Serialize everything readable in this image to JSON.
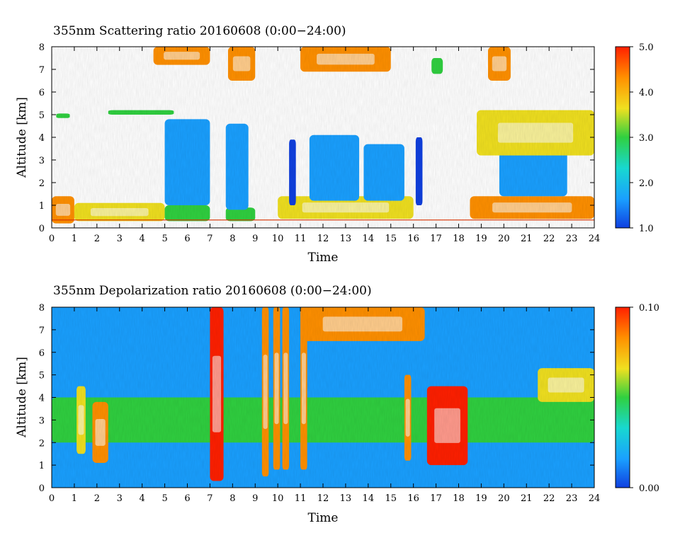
{
  "chart_data": [
    {
      "type": "heatmap",
      "title": "355nm Scattering ratio  20160608 (0:00−24:00)",
      "xlabel": "Time",
      "ylabel": "Altitude [km]",
      "xlim": [
        0,
        24
      ],
      "ylim": [
        0,
        8
      ],
      "x_ticks": [
        "0",
        "1",
        "2",
        "3",
        "4",
        "5",
        "6",
        "7",
        "8",
        "9",
        "10",
        "11",
        "12",
        "13",
        "14",
        "15",
        "16",
        "17",
        "18",
        "19",
        "20",
        "21",
        "22",
        "23",
        "24"
      ],
      "y_ticks": [
        "0",
        "1",
        "2",
        "3",
        "4",
        "5",
        "6",
        "7",
        "8"
      ],
      "colorbar": {
        "min": 1.0,
        "max": 5.0,
        "ticks": [
          "1.0",
          "2.0",
          "3.0",
          "4.0",
          "5.0"
        ]
      },
      "colormap": [
        "#1040e0",
        "#1aa0ff",
        "#18d8d0",
        "#30d040",
        "#f0e020",
        "#ff9000",
        "#ff2000"
      ],
      "ground_line_km": 0.35,
      "features": [
        {
          "kind": "boundary_layer",
          "x": [
            0,
            1
          ],
          "y": [
            0.2,
            1.4
          ],
          "value": 4.2
        },
        {
          "kind": "boundary_layer",
          "x": [
            1,
            5
          ],
          "y": [
            0.3,
            1.1
          ],
          "value": 3.6
        },
        {
          "kind": "boundary_layer",
          "x": [
            5,
            7
          ],
          "y": [
            0.3,
            1.0
          ],
          "value": 3.2
        },
        {
          "kind": "boundary_layer",
          "x": [
            7.7,
            9
          ],
          "y": [
            0.3,
            0.9
          ],
          "value": 2.8
        },
        {
          "kind": "boundary_layer",
          "x": [
            10,
            16
          ],
          "y": [
            0.4,
            1.4
          ],
          "value": 3.4
        },
        {
          "kind": "boundary_layer",
          "x": [
            18.5,
            24
          ],
          "y": [
            0.4,
            1.4
          ],
          "value": 4.3
        },
        {
          "kind": "aerosol_column",
          "x": [
            5,
            7
          ],
          "y": [
            1.0,
            4.8
          ],
          "value": 1.4
        },
        {
          "kind": "aerosol_column",
          "x": [
            7.7,
            8.7
          ],
          "y": [
            0.8,
            4.6
          ],
          "value": 1.4
        },
        {
          "kind": "aerosol_column",
          "x": [
            10.5,
            10.8
          ],
          "y": [
            1.0,
            3.9
          ],
          "value": 1.3
        },
        {
          "kind": "aerosol_column",
          "x": [
            11.4,
            13.6
          ],
          "y": [
            1.2,
            4.1
          ],
          "value": 1.5
        },
        {
          "kind": "aerosol_column",
          "x": [
            13.8,
            15.6
          ],
          "y": [
            1.2,
            3.7
          ],
          "value": 1.5
        },
        {
          "kind": "aerosol_column",
          "x": [
            16.1,
            16.4
          ],
          "y": [
            1.0,
            4.0
          ],
          "value": 1.3
        },
        {
          "kind": "aerosol_column",
          "x": [
            19.8,
            22.8
          ],
          "y": [
            1.4,
            3.5
          ],
          "value": 1.6
        },
        {
          "kind": "cloud_layer",
          "x": [
            0.2,
            0.8
          ],
          "y": [
            4.85,
            5.05
          ],
          "value": 3.0
        },
        {
          "kind": "cloud_layer",
          "x": [
            2.5,
            5.4
          ],
          "y": [
            5.0,
            5.2
          ],
          "value": 3.0
        },
        {
          "kind": "cloud_layer",
          "x": [
            18.8,
            24
          ],
          "y": [
            3.2,
            5.2
          ],
          "value": 3.5
        },
        {
          "kind": "cloud_layer",
          "x": [
            4.5,
            7.0
          ],
          "y": [
            7.2,
            8.0
          ],
          "value": 4.0
        },
        {
          "kind": "cloud_layer",
          "x": [
            7.8,
            9.0
          ],
          "y": [
            6.5,
            8.0
          ],
          "value": 4.2
        },
        {
          "kind": "cloud_layer",
          "x": [
            11.0,
            15.0
          ],
          "y": [
            6.9,
            8.0
          ],
          "value": 4.0
        },
        {
          "kind": "cloud_layer",
          "x": [
            16.8,
            17.3
          ],
          "y": [
            6.8,
            7.5
          ],
          "value": 3.2
        },
        {
          "kind": "cloud_layer",
          "x": [
            19.3,
            20.3
          ],
          "y": [
            6.5,
            8.0
          ],
          "value": 4.0
        }
      ]
    },
    {
      "type": "heatmap",
      "title": "355nm Depolarization ratio  20160608 (0:00−24:00)",
      "xlabel": "Time",
      "ylabel": "Altitude [km]",
      "xlim": [
        0,
        24
      ],
      "ylim": [
        0,
        8
      ],
      "x_ticks": [
        "0",
        "1",
        "2",
        "3",
        "4",
        "5",
        "6",
        "7",
        "8",
        "9",
        "10",
        "11",
        "12",
        "13",
        "14",
        "15",
        "16",
        "17",
        "18",
        "19",
        "20",
        "21",
        "22",
        "23",
        "24"
      ],
      "y_ticks": [
        "0",
        "1",
        "2",
        "3",
        "4",
        "5",
        "6",
        "7",
        "8"
      ],
      "colorbar": {
        "min": 0.0,
        "max": 0.1,
        "ticks": [
          "0.00",
          "0.10"
        ]
      },
      "colormap": [
        "#1040e0",
        "#1aa0ff",
        "#18d8d0",
        "#30d040",
        "#f0e020",
        "#ff9000",
        "#ff2000"
      ],
      "features": [
        {
          "kind": "aerosol_layer",
          "x": [
            0,
            24
          ],
          "y": [
            2.0,
            4.0
          ],
          "value": 0.045
        },
        {
          "kind": "dust_column",
          "x": [
            7.0,
            7.6
          ],
          "y": [
            0.3,
            8.0
          ],
          "value": 0.1
        },
        {
          "kind": "dust_column",
          "x": [
            9.3,
            9.6
          ],
          "y": [
            0.5,
            8.0
          ],
          "value": 0.09
        },
        {
          "kind": "dust_column",
          "x": [
            9.8,
            10.1
          ],
          "y": [
            0.8,
            8.0
          ],
          "value": 0.09
        },
        {
          "kind": "dust_column",
          "x": [
            10.2,
            10.5
          ],
          "y": [
            0.8,
            8.0
          ],
          "value": 0.08
        },
        {
          "kind": "dust_column",
          "x": [
            11.0,
            11.3
          ],
          "y": [
            0.8,
            8.0
          ],
          "value": 0.08
        },
        {
          "kind": "dust_column",
          "x": [
            1.1,
            1.5
          ],
          "y": [
            1.5,
            4.5
          ],
          "value": 0.07
        },
        {
          "kind": "dust_column",
          "x": [
            1.8,
            2.5
          ],
          "y": [
            1.1,
            3.8
          ],
          "value": 0.08
        },
        {
          "kind": "dust_column",
          "x": [
            16.6,
            18.4
          ],
          "y": [
            1.0,
            4.5
          ],
          "value": 0.1
        },
        {
          "kind": "dust_column",
          "x": [
            15.6,
            15.9
          ],
          "y": [
            1.2,
            5.0
          ],
          "value": 0.08
        },
        {
          "kind": "cloud_layer",
          "x": [
            11.0,
            16.5
          ],
          "y": [
            6.5,
            8.0
          ],
          "value": 0.08
        },
        {
          "kind": "cloud_layer",
          "x": [
            21.5,
            24
          ],
          "y": [
            3.8,
            5.3
          ],
          "value": 0.07
        }
      ]
    }
  ]
}
